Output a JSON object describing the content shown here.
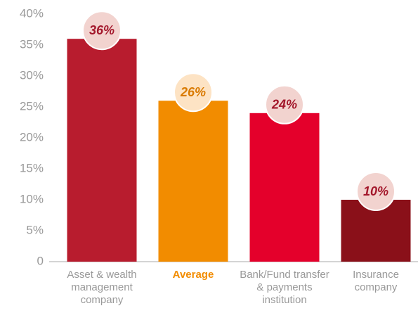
{
  "chart_data": {
    "type": "bar",
    "categories": [
      "Asset & wealth management company",
      "Average",
      "Bank/Fund transfer & payments institution",
      "Insurance company"
    ],
    "values": [
      36,
      26,
      24,
      10
    ],
    "value_labels": [
      "36%",
      "26%",
      "24%",
      "10%"
    ],
    "colors": [
      "#b81c2e",
      "#f28c00",
      "#e4002b",
      "#8a1019"
    ],
    "bubble_colors": [
      "#f2d3cf",
      "#fde3c4",
      "#f2d3cf",
      "#f2d3cf"
    ],
    "value_label_colors": [
      "#a3172b",
      "#d97a00",
      "#a3172b",
      "#a3172b"
    ],
    "highlight_index": 1,
    "highlight_color": "#f28c00",
    "ylim": [
      0,
      40
    ],
    "yticks": [
      0,
      {
        "value": 5,
        "label": "5%"
      },
      {
        "value": 10,
        "label": "10%"
      },
      {
        "value": 15,
        "label": "15%"
      },
      {
        "value": 20,
        "label": "20%"
      },
      {
        "value": 25,
        "label": "25%"
      },
      {
        "value": 30,
        "label": "30%"
      },
      {
        "value": 35,
        "label": "35%"
      },
      {
        "value": 40,
        "label": "40%"
      }
    ],
    "grid": false
  }
}
